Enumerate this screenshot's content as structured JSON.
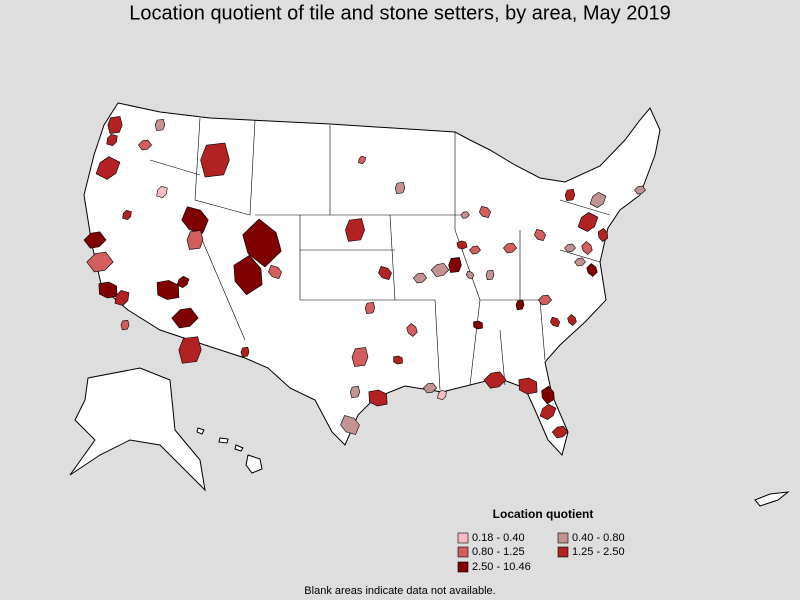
{
  "title": "Location quotient of tile and stone setters, by area, May 2019",
  "legend": {
    "title": "Location quotient",
    "items": [
      {
        "label": "0.18 - 0.40",
        "color": "#f6bcc4"
      },
      {
        "label": "0.40 - 0.80",
        "color": "#c39393"
      },
      {
        "label": "0.80 - 1.25",
        "color": "#d25e5e"
      },
      {
        "label": "1.25 - 2.50",
        "color": "#b22222"
      },
      {
        "label": "2.50 - 10.46",
        "color": "#800000"
      }
    ]
  },
  "footnote": "Blank areas indicate data not available."
}
